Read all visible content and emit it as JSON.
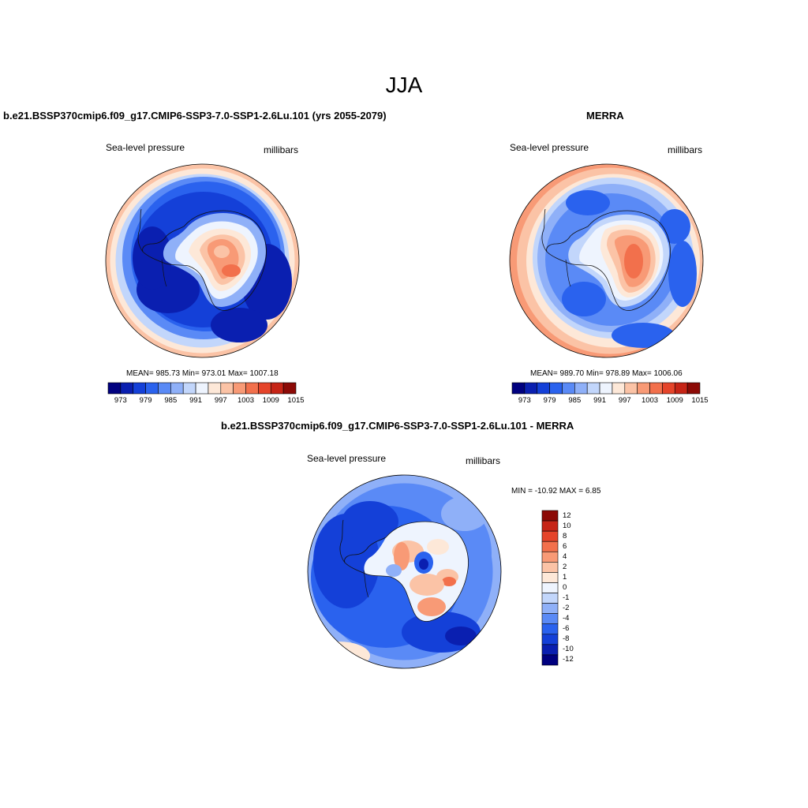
{
  "figure": {
    "title": "JJA"
  },
  "panels": [
    {
      "id": "model",
      "title": "b.e21.BSSP370cmip6.f09_g17.CMIP6-SSP3-7.0-SSP1-2.6Lu.101 (yrs 2055-2079)",
      "left_label": "Sea-level pressure",
      "right_label": "millibars",
      "stats": {
        "mean": "985.73",
        "min": "973.01",
        "max": "1007.18"
      },
      "stats_text": "MEAN= 985.73   Min= 973.01   Max= 1007.18"
    },
    {
      "id": "obs",
      "title": "MERRA",
      "left_label": "Sea-level pressure",
      "right_label": "millibars",
      "stats": {
        "mean": "989.70",
        "min": "978.89",
        "max": "1006.06"
      },
      "stats_text": "MEAN= 989.70   Min= 978.89   Max= 1006.06"
    },
    {
      "id": "diff",
      "title": "b.e21.BSSP370cmip6.f09_g17.CMIP6-SSP3-7.0-SSP1-2.6Lu.101 - MERRA",
      "left_label": "Sea-level pressure",
      "right_label": "millibars",
      "stats": {
        "min": "-10.92",
        "max": "6.85"
      },
      "stats_text": "MIN = -10.92 MAX =   6.85"
    }
  ],
  "colorbar_abs": {
    "tick_labels": [
      "973",
      "979",
      "985",
      "991",
      "997",
      "1003",
      "1009",
      "1015"
    ],
    "colors": [
      "#00007f",
      "#0a1fb0",
      "#1440d8",
      "#2a62ee",
      "#5a8af6",
      "#8fb0f8",
      "#c2d6fb",
      "#eef4fe",
      "#fde8d8",
      "#fbc3a6",
      "#f89a76",
      "#f2704c",
      "#e5442a",
      "#c62416",
      "#8c0a06"
    ]
  },
  "colorbar_diff": {
    "levels": [
      "12",
      "10",
      "8",
      "6",
      "4",
      "2",
      "1",
      "0",
      "-1",
      "-2",
      "-4",
      "-6",
      "-8",
      "-10",
      "-12"
    ],
    "colors": [
      "#8c0a06",
      "#c62416",
      "#e5442a",
      "#f2704c",
      "#f89a76",
      "#fbc3a6",
      "#fde8d8",
      "#eef4fe",
      "#c2d6fb",
      "#8fb0f8",
      "#5a8af6",
      "#2a62ee",
      "#1440d8",
      "#0a1fb0",
      "#00007f"
    ]
  }
}
